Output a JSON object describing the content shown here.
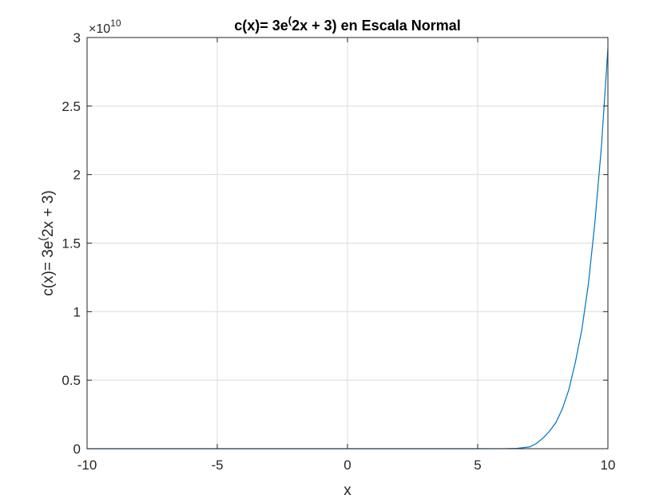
{
  "chart_data": {
    "type": "line",
    "title": {
      "pre": "c(x)= 3e",
      "sup": "(",
      "post": "2x + 3) en Escala Normal"
    },
    "xlabel": "x",
    "ylabel": {
      "pre": "c(x)= 3e",
      "sup": "(",
      "post": "2x + 3)"
    },
    "xlim": [
      -10,
      10
    ],
    "ylim": [
      0,
      30000000000.0
    ],
    "x_ticks": [
      -10,
      -5,
      0,
      5,
      10
    ],
    "x_tick_labels": [
      "-10",
      "-5",
      "0",
      "5",
      "10"
    ],
    "y_ticks": [
      0,
      5000000000.0,
      10000000000.0,
      15000000000.0,
      20000000000.0,
      25000000000.0,
      30000000000.0
    ],
    "y_tick_labels": [
      "0",
      "0.5",
      "1",
      "1.5",
      "2",
      "2.5",
      "3"
    ],
    "y_exponent": {
      "base": "×10",
      "power": "10"
    },
    "grid": true,
    "series": [
      {
        "color": "#0072BD",
        "x": [
          -10,
          0,
          5,
          6,
          6.5,
          7,
          7.25,
          7.5,
          7.75,
          8,
          8.25,
          8.5,
          8.75,
          9,
          9.25,
          9.5,
          9.75,
          10
        ],
        "y": [
          0,
          60,
          180000.0,
          4800000.0,
          24000000.0,
          130000000.0,
          380000000.0,
          760000000.0,
          1260000000.0,
          1900000000.0,
          2900000000.0,
          4300000000.0,
          6300000000.0,
          8700000000.0,
          12000000000.0,
          16500000000.0,
          22000000000.0,
          29200000000.0
        ]
      }
    ]
  }
}
